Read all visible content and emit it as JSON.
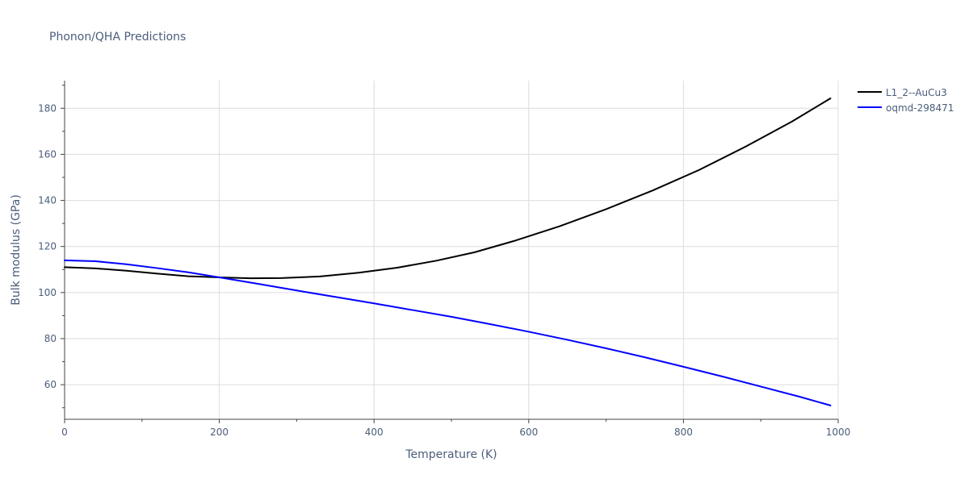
{
  "chart_data": {
    "type": "line",
    "title": "Phonon/QHA Predictions",
    "xlabel": "Temperature (K)",
    "ylabel": "Bulk modulus (GPa)",
    "xlim": [
      0,
      1000
    ],
    "ylim": [
      45,
      192
    ],
    "x_ticks": [
      0,
      200,
      400,
      600,
      800,
      1000
    ],
    "y_ticks": [
      60,
      80,
      100,
      120,
      140,
      160,
      180
    ],
    "grid": true,
    "legend_position": "top-right",
    "series": [
      {
        "name": "L1_2--AuCu3",
        "color": "#000000",
        "x": [
          0,
          40,
          80,
          120,
          160,
          200,
          240,
          280,
          330,
          380,
          430,
          480,
          530,
          580,
          640,
          700,
          760,
          820,
          880,
          940,
          990
        ],
        "y": [
          111,
          110.5,
          109.5,
          108.2,
          107.1,
          106.6,
          106.2,
          106.3,
          107,
          108.6,
          110.8,
          113.8,
          117.5,
          122.3,
          128.8,
          136.2,
          144.3,
          153.2,
          163.3,
          174.2,
          184.3
        ]
      },
      {
        "name": "oqmd-298471",
        "color": "#0000ff",
        "x": [
          0,
          40,
          80,
          120,
          160,
          200,
          250,
          300,
          350,
          400,
          450,
          500,
          550,
          600,
          650,
          700,
          750,
          800,
          850,
          900,
          950,
          990
        ],
        "y": [
          114,
          113.6,
          112.3,
          110.6,
          108.8,
          106.6,
          103.8,
          100.9,
          98.1,
          95.3,
          92.4,
          89.5,
          86.3,
          83,
          79.5,
          75.8,
          71.9,
          67.8,
          63.6,
          59.2,
          54.8,
          51
        ]
      }
    ]
  }
}
